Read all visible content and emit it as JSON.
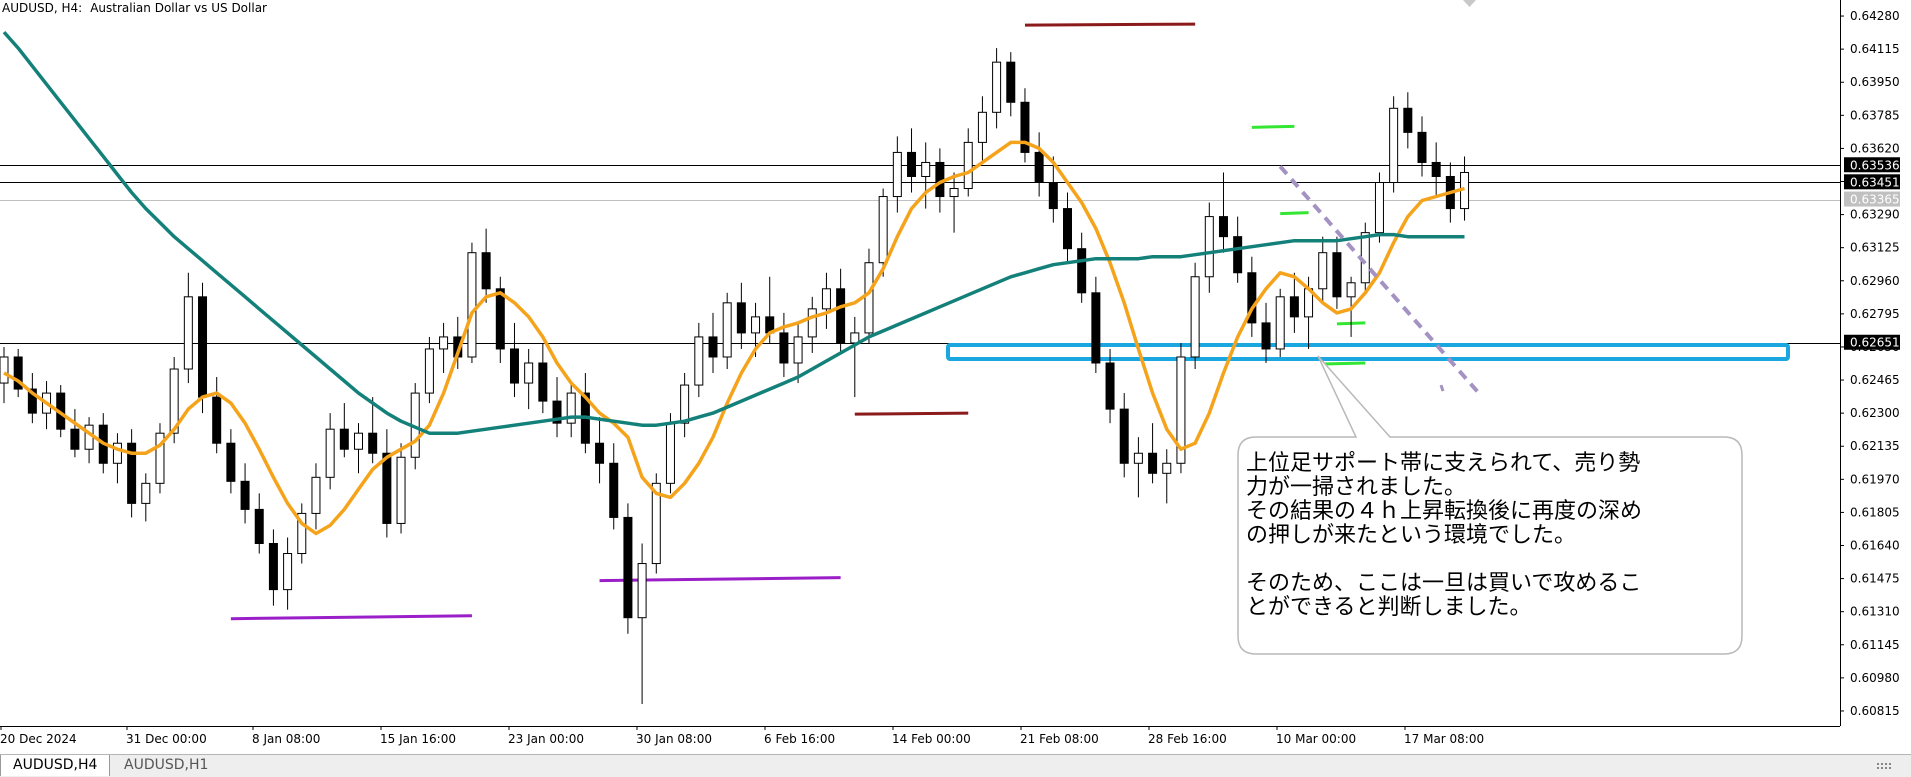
{
  "window": {
    "symbol": "AUDUSD, H4:",
    "description": "Australian Dollar vs US Dollar"
  },
  "tabs": [
    {
      "label": "AUDUSD,H4",
      "active": true
    },
    {
      "label": "AUDUSD,H1",
      "active": false
    }
  ],
  "annotation": {
    "paragraph1": "上位足サポート帯に支えられて、売り勢\n力が一掃されました。\nその結果の４ｈ上昇転換後に再度の深め\nの押しが来たという環境でした。",
    "paragraph2": "そのため、ここは一旦は買いで攻めるこ\nとができると判断しました。"
  },
  "colors": {
    "sma_fast": "#f5a31a",
    "sma_slow": "#13807a",
    "support_zone": "#1aa7e0",
    "resistance_marker": "#8b1a1a",
    "low_marker": "#9a1fc9",
    "swing_marker": "#33e633",
    "trendline": "#a392c2"
  },
  "chart_data": {
    "type": "candlestick",
    "symbol": "AUDUSD",
    "timeframe": "H4",
    "ylim": [
      0.6074,
      0.6436
    ],
    "y_ticks": [
      "0.64280",
      "0.64115",
      "0.63950",
      "0.63785",
      "0.63620",
      "0.63455",
      "0.63290",
      "0.63125",
      "0.62960",
      "0.62795",
      "0.62630",
      "0.62465",
      "0.62300",
      "0.62135",
      "0.61970",
      "0.61805",
      "0.61640",
      "0.61475",
      "0.61310",
      "0.61145",
      "0.60980",
      "0.60815"
    ],
    "x_ticks": [
      "20 Dec 2024",
      "31 Dec 00:00",
      "8 Jan 08:00",
      "15 Jan 16:00",
      "23 Jan 00:00",
      "30 Jan 08:00",
      "6 Feb 16:00",
      "14 Feb 00:00",
      "21 Feb 08:00",
      "28 Feb 16:00",
      "10 Mar 00:00",
      "17 Mar 08:00"
    ],
    "horizontal_levels": [
      {
        "label": "0.63536",
        "value": 0.63536,
        "style": "solid"
      },
      {
        "label": "0.63451",
        "value": 0.63451,
        "style": "solid"
      },
      {
        "label": "0.63365",
        "value": 0.63365,
        "style": "light"
      },
      {
        "label": "0.62651",
        "value": 0.62651,
        "style": "solid"
      }
    ],
    "support_zone": {
      "from": "14 Feb 00:00",
      "to": "after 17 Mar 08:00",
      "y_range": [
        0.6257,
        0.6264
      ]
    },
    "series": [
      {
        "kind": "ohlc",
        "points": [
          [
            0.6245,
            0.6263,
            0.6235,
            0.6258
          ],
          [
            0.6258,
            0.6262,
            0.6238,
            0.6242
          ],
          [
            0.6242,
            0.625,
            0.6225,
            0.623
          ],
          [
            0.623,
            0.6246,
            0.6222,
            0.624
          ],
          [
            0.624,
            0.6244,
            0.6218,
            0.6222
          ],
          [
            0.6222,
            0.6232,
            0.6208,
            0.6212
          ],
          [
            0.6212,
            0.6228,
            0.6205,
            0.6224
          ],
          [
            0.6224,
            0.623,
            0.62,
            0.6205
          ],
          [
            0.6205,
            0.622,
            0.6195,
            0.6215
          ],
          [
            0.6215,
            0.6222,
            0.6178,
            0.6185
          ],
          [
            0.6185,
            0.62,
            0.6176,
            0.6195
          ],
          [
            0.6195,
            0.6225,
            0.619,
            0.622
          ],
          [
            0.622,
            0.6258,
            0.6215,
            0.6252
          ],
          [
            0.6252,
            0.63,
            0.6245,
            0.6288
          ],
          [
            0.6288,
            0.6295,
            0.623,
            0.6238
          ],
          [
            0.6238,
            0.6248,
            0.621,
            0.6215
          ],
          [
            0.6215,
            0.6222,
            0.619,
            0.6196
          ],
          [
            0.6196,
            0.6205,
            0.6175,
            0.6182
          ],
          [
            0.6182,
            0.619,
            0.616,
            0.6165
          ],
          [
            0.6165,
            0.6172,
            0.6134,
            0.6142
          ],
          [
            0.6142,
            0.6168,
            0.6132,
            0.616
          ],
          [
            0.616,
            0.6185,
            0.6155,
            0.618
          ],
          [
            0.618,
            0.6205,
            0.6172,
            0.6198
          ],
          [
            0.6198,
            0.623,
            0.6192,
            0.6222
          ],
          [
            0.6222,
            0.6235,
            0.6208,
            0.6212
          ],
          [
            0.6212,
            0.6225,
            0.62,
            0.622
          ],
          [
            0.622,
            0.6238,
            0.6205,
            0.621
          ],
          [
            0.621,
            0.6222,
            0.6168,
            0.6175
          ],
          [
            0.6175,
            0.6215,
            0.617,
            0.6208
          ],
          [
            0.6208,
            0.6245,
            0.6202,
            0.624
          ],
          [
            0.624,
            0.6268,
            0.6235,
            0.6262
          ],
          [
            0.6262,
            0.6275,
            0.625,
            0.6268
          ],
          [
            0.6268,
            0.6278,
            0.6252,
            0.6258
          ],
          [
            0.6258,
            0.6315,
            0.6255,
            0.631
          ],
          [
            0.631,
            0.6322,
            0.6285,
            0.6292
          ],
          [
            0.6292,
            0.6298,
            0.6255,
            0.6262
          ],
          [
            0.6262,
            0.6275,
            0.6238,
            0.6245
          ],
          [
            0.6245,
            0.6262,
            0.6232,
            0.6255
          ],
          [
            0.6255,
            0.6265,
            0.623,
            0.6236
          ],
          [
            0.6236,
            0.6248,
            0.6218,
            0.6225
          ],
          [
            0.6225,
            0.6245,
            0.6218,
            0.624
          ],
          [
            0.624,
            0.625,
            0.621,
            0.6215
          ],
          [
            0.6215,
            0.6228,
            0.6195,
            0.6205
          ],
          [
            0.6205,
            0.6215,
            0.6172,
            0.6178
          ],
          [
            0.6178,
            0.6185,
            0.612,
            0.6128
          ],
          [
            0.6128,
            0.6165,
            0.6085,
            0.6155
          ],
          [
            0.6155,
            0.62,
            0.615,
            0.6195
          ],
          [
            0.6195,
            0.623,
            0.619,
            0.6225
          ],
          [
            0.6225,
            0.625,
            0.6218,
            0.6244
          ],
          [
            0.6244,
            0.6275,
            0.6238,
            0.6268
          ],
          [
            0.6268,
            0.628,
            0.625,
            0.6258
          ],
          [
            0.6258,
            0.629,
            0.6252,
            0.6285
          ],
          [
            0.6285,
            0.6295,
            0.6262,
            0.627
          ],
          [
            0.627,
            0.6285,
            0.6258,
            0.6278
          ],
          [
            0.6278,
            0.6298,
            0.6265,
            0.627
          ],
          [
            0.627,
            0.628,
            0.6248,
            0.6255
          ],
          [
            0.6255,
            0.6275,
            0.6245,
            0.6268
          ],
          [
            0.6268,
            0.6288,
            0.626,
            0.6282
          ],
          [
            0.6282,
            0.63,
            0.6272,
            0.6292
          ],
          [
            0.6292,
            0.6302,
            0.626,
            0.6265
          ],
          [
            0.6265,
            0.6278,
            0.6238,
            0.627
          ],
          [
            0.627,
            0.6312,
            0.6265,
            0.6305
          ],
          [
            0.6305,
            0.6342,
            0.6298,
            0.6338
          ],
          [
            0.6338,
            0.6368,
            0.633,
            0.636
          ],
          [
            0.636,
            0.6372,
            0.634,
            0.6348
          ],
          [
            0.6348,
            0.6365,
            0.6332,
            0.6355
          ],
          [
            0.6355,
            0.6362,
            0.633,
            0.6338
          ],
          [
            0.6338,
            0.635,
            0.632,
            0.6342
          ],
          [
            0.6342,
            0.6372,
            0.6338,
            0.6365
          ],
          [
            0.6365,
            0.6388,
            0.6355,
            0.638
          ],
          [
            0.638,
            0.6412,
            0.6372,
            0.6405
          ],
          [
            0.6405,
            0.641,
            0.6378,
            0.6385
          ],
          [
            0.6385,
            0.6392,
            0.6355,
            0.636
          ],
          [
            0.636,
            0.637,
            0.6338,
            0.6345
          ],
          [
            0.6345,
            0.6358,
            0.6325,
            0.6332
          ],
          [
            0.6332,
            0.634,
            0.6305,
            0.6312
          ],
          [
            0.6312,
            0.632,
            0.6285,
            0.629
          ],
          [
            0.629,
            0.6298,
            0.625,
            0.6255
          ],
          [
            0.6255,
            0.6262,
            0.6225,
            0.6232
          ],
          [
            0.6232,
            0.624,
            0.6198,
            0.6205
          ],
          [
            0.6205,
            0.6218,
            0.6188,
            0.621
          ],
          [
            0.621,
            0.6225,
            0.6195,
            0.62
          ],
          [
            0.62,
            0.6212,
            0.6185,
            0.6205
          ],
          [
            0.6205,
            0.6265,
            0.62,
            0.6258
          ],
          [
            0.6258,
            0.6305,
            0.6252,
            0.6298
          ],
          [
            0.6298,
            0.6335,
            0.629,
            0.6328
          ],
          [
            0.6328,
            0.635,
            0.631,
            0.6318
          ],
          [
            0.6318,
            0.6328,
            0.6295,
            0.63
          ],
          [
            0.63,
            0.6308,
            0.6268,
            0.6275
          ],
          [
            0.6275,
            0.6285,
            0.6255,
            0.6262
          ],
          [
            0.6262,
            0.6292,
            0.6258,
            0.6288
          ],
          [
            0.6288,
            0.63,
            0.627,
            0.6278
          ],
          [
            0.6278,
            0.6298,
            0.6262,
            0.6292
          ],
          [
            0.6292,
            0.6318,
            0.6285,
            0.631
          ],
          [
            0.631,
            0.6318,
            0.6282,
            0.6288
          ],
          [
            0.6288,
            0.6298,
            0.6268,
            0.6295
          ],
          [
            0.6295,
            0.6325,
            0.629,
            0.632
          ],
          [
            0.632,
            0.635,
            0.6315,
            0.6345
          ],
          [
            0.6345,
            0.6388,
            0.634,
            0.6382
          ],
          [
            0.6382,
            0.639,
            0.6362,
            0.637
          ],
          [
            0.637,
            0.6378,
            0.6348,
            0.6355
          ],
          [
            0.6355,
            0.6365,
            0.6338,
            0.6348
          ],
          [
            0.6348,
            0.6355,
            0.6325,
            0.6332
          ],
          [
            0.6332,
            0.6358,
            0.6326,
            0.635
          ]
        ]
      },
      {
        "kind": "line",
        "color_key": "sma_fast",
        "values": [
          0.625,
          0.6246,
          0.624,
          0.6235,
          0.623,
          0.6225,
          0.622,
          0.6215,
          0.6212,
          0.621,
          0.621,
          0.6214,
          0.6222,
          0.6232,
          0.6238,
          0.624,
          0.6235,
          0.6225,
          0.6212,
          0.6198,
          0.6185,
          0.6175,
          0.617,
          0.6174,
          0.6182,
          0.6192,
          0.6202,
          0.6208,
          0.6212,
          0.6216,
          0.6224,
          0.624,
          0.626,
          0.628,
          0.6288,
          0.629,
          0.6285,
          0.6278,
          0.6268,
          0.6255,
          0.6245,
          0.6238,
          0.623,
          0.6225,
          0.6218,
          0.6198,
          0.619,
          0.6188,
          0.6195,
          0.6205,
          0.6218,
          0.6235,
          0.625,
          0.6262,
          0.627,
          0.6273,
          0.6275,
          0.6278,
          0.628,
          0.6283,
          0.6285,
          0.629,
          0.6302,
          0.6318,
          0.6332,
          0.634,
          0.6345,
          0.6348,
          0.635,
          0.6355,
          0.636,
          0.6365,
          0.6365,
          0.6362,
          0.6355,
          0.6345,
          0.6335,
          0.6322,
          0.6305,
          0.6285,
          0.6262,
          0.624,
          0.6222,
          0.6212,
          0.6215,
          0.623,
          0.625,
          0.6268,
          0.6282,
          0.6292,
          0.63,
          0.6298,
          0.6292,
          0.6285,
          0.628,
          0.6282,
          0.629,
          0.63,
          0.6315,
          0.6328,
          0.6336,
          0.6338,
          0.634,
          0.6342
        ]
      },
      {
        "kind": "line",
        "color_key": "sma_slow",
        "values": [
          0.642,
          0.6412,
          0.6403,
          0.6394,
          0.6385,
          0.6376,
          0.6367,
          0.6358,
          0.6349,
          0.634,
          0.6332,
          0.6325,
          0.6318,
          0.6312,
          0.6306,
          0.63,
          0.6294,
          0.6288,
          0.6282,
          0.6276,
          0.627,
          0.6264,
          0.6258,
          0.6252,
          0.6246,
          0.624,
          0.6235,
          0.623,
          0.6226,
          0.6223,
          0.622,
          0.622,
          0.622,
          0.6221,
          0.6222,
          0.6223,
          0.6224,
          0.6225,
          0.6226,
          0.6227,
          0.6228,
          0.6228,
          0.6227,
          0.6226,
          0.6225,
          0.6224,
          0.6224,
          0.6225,
          0.6226,
          0.6228,
          0.623,
          0.6233,
          0.6236,
          0.6239,
          0.6242,
          0.6245,
          0.6248,
          0.6252,
          0.6256,
          0.626,
          0.6264,
          0.6268,
          0.6271,
          0.6274,
          0.6277,
          0.628,
          0.6283,
          0.6286,
          0.6289,
          0.6292,
          0.6295,
          0.6298,
          0.63,
          0.6302,
          0.6304,
          0.6305,
          0.6306,
          0.6307,
          0.6307,
          0.6307,
          0.6307,
          0.6308,
          0.6308,
          0.6308,
          0.6309,
          0.631,
          0.6311,
          0.6312,
          0.6313,
          0.6314,
          0.6315,
          0.6316,
          0.6316,
          0.6316,
          0.6316,
          0.6317,
          0.6318,
          0.6319,
          0.6319,
          0.6318,
          0.6318,
          0.6318,
          0.6318,
          0.6318
        ]
      }
    ],
    "markers": [
      {
        "kind": "resistance",
        "bar_range": [
          72,
          84
        ],
        "value": 0.6424
      },
      {
        "kind": "resistance",
        "bar_range": [
          60,
          68
        ],
        "value": 0.623
      },
      {
        "kind": "low",
        "bar_range": [
          16,
          33
        ],
        "value": 0.6128
      },
      {
        "kind": "low",
        "bar_range": [
          42,
          59
        ],
        "value": 0.6147
      },
      {
        "kind": "swing",
        "bar_range": [
          88,
          91
        ],
        "value": 0.6373
      },
      {
        "kind": "swing",
        "bar_range": [
          90,
          92
        ],
        "value": 0.633
      },
      {
        "kind": "swing",
        "bar_range": [
          94,
          96
        ],
        "value": 0.6275
      },
      {
        "kind": "swing",
        "bar_range": [
          93,
          96
        ],
        "value": 0.6255
      }
    ],
    "trendline": {
      "bar_range": [
        90,
        104
      ],
      "values": [
        0.6353,
        0.624
      ],
      "style": "dashed"
    }
  }
}
